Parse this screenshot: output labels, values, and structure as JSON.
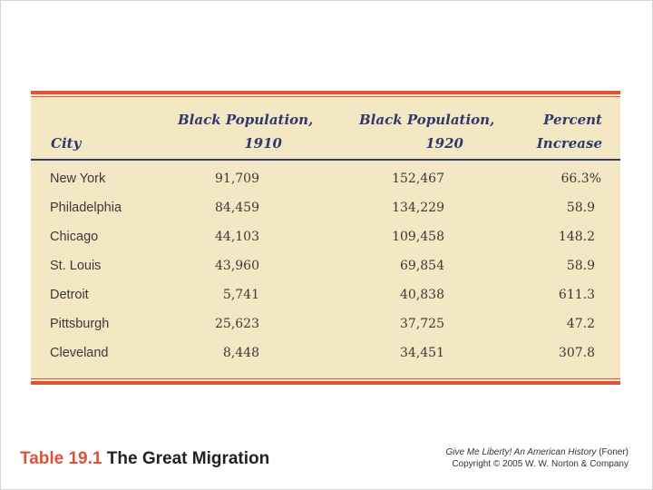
{
  "table": {
    "headers": {
      "city": "City",
      "pop_1910": [
        "Black Population,",
        "1910"
      ],
      "pop_1920": [
        "Black Population,",
        "1920"
      ],
      "percent": [
        "Percent",
        "Increase"
      ]
    },
    "rows": [
      {
        "city": "New York",
        "pop_1910": "91,709",
        "pop_1920": "152,467",
        "increase": "66.3%"
      },
      {
        "city": "Philadelphia",
        "pop_1910": "84,459",
        "pop_1920": "134,229",
        "increase": "58.9"
      },
      {
        "city": "Chicago",
        "pop_1910": "44,103",
        "pop_1920": "109,458",
        "increase": "148.2"
      },
      {
        "city": "St. Louis",
        "pop_1910": "43,960",
        "pop_1920": "69,854",
        "increase": "58.9"
      },
      {
        "city": "Detroit",
        "pop_1910": "5,741",
        "pop_1920": "40,838",
        "increase": "611.3"
      },
      {
        "city": "Pittsburgh",
        "pop_1910": "25,623",
        "pop_1920": "37,725",
        "increase": "47.2"
      },
      {
        "city": "Cleveland",
        "pop_1910": "8,448",
        "pop_1920": "34,451",
        "increase": "307.8"
      }
    ]
  },
  "caption": {
    "number": "Table 19.1",
    "title": "The Great Migration"
  },
  "credit": {
    "book_title": "Give Me Liberty! An American History",
    "author": "(Foner)",
    "copyright": "Copyright © 2005 W. W. Norton & Company"
  },
  "colors": {
    "panel_background": "#f3e8c3",
    "rule_red": "#d9543a",
    "header_navy": "#2e3a6e"
  }
}
